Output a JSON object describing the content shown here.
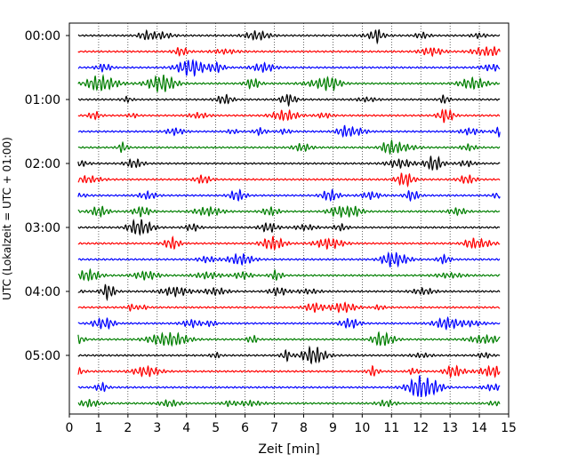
{
  "chart_data": {
    "type": "line",
    "title": "",
    "xlabel": "Zeit  [min]",
    "ylabel": "UTC (Lokalzeit = UTC + 01:00)",
    "xlim": [
      0,
      15
    ],
    "x_ticks": [
      0,
      1,
      2,
      3,
      4,
      5,
      6,
      7,
      8,
      9,
      10,
      11,
      12,
      13,
      14,
      15
    ],
    "y_tick_labels": [
      "00:00",
      "01:00",
      "02:00",
      "03:00",
      "04:00",
      "05:00"
    ],
    "lines_per_hour": 4,
    "minutes_per_line": 15,
    "line_count": 24,
    "line_colors": [
      "#000000",
      "#ff0000",
      "#0000ff",
      "#007f00"
    ],
    "grid": {
      "vertical": true,
      "style": "dotted"
    },
    "series": [
      {
        "start": "00:00",
        "color": "#000000"
      },
      {
        "start": "00:15",
        "color": "#ff0000"
      },
      {
        "start": "00:30",
        "color": "#0000ff"
      },
      {
        "start": "00:45",
        "color": "#007f00"
      },
      {
        "start": "01:00",
        "color": "#000000"
      },
      {
        "start": "01:15",
        "color": "#ff0000"
      },
      {
        "start": "01:30",
        "color": "#0000ff"
      },
      {
        "start": "01:45",
        "color": "#007f00"
      },
      {
        "start": "02:00",
        "color": "#000000"
      },
      {
        "start": "02:15",
        "color": "#ff0000"
      },
      {
        "start": "02:30",
        "color": "#0000ff"
      },
      {
        "start": "02:45",
        "color": "#007f00"
      },
      {
        "start": "03:00",
        "color": "#000000"
      },
      {
        "start": "03:15",
        "color": "#ff0000"
      },
      {
        "start": "03:30",
        "color": "#0000ff"
      },
      {
        "start": "03:45",
        "color": "#007f00"
      },
      {
        "start": "04:00",
        "color": "#000000"
      },
      {
        "start": "04:15",
        "color": "#ff0000"
      },
      {
        "start": "04:30",
        "color": "#0000ff"
      },
      {
        "start": "04:45",
        "color": "#007f00"
      },
      {
        "start": "05:00",
        "color": "#000000"
      },
      {
        "start": "05:15",
        "color": "#ff0000"
      },
      {
        "start": "05:30",
        "color": "#0000ff"
      },
      {
        "start": "05:45",
        "color": "#007f00"
      }
    ]
  }
}
